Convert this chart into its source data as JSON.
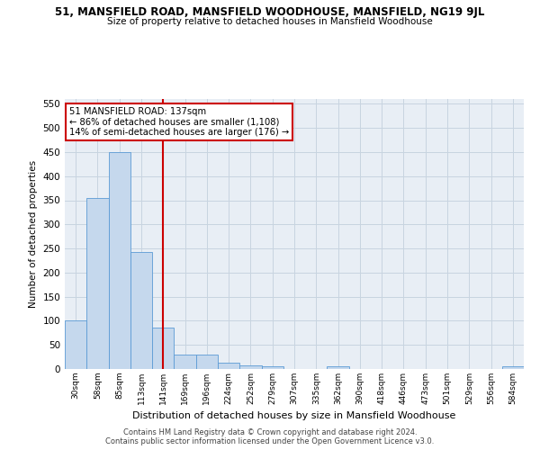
{
  "title": "51, MANSFIELD ROAD, MANSFIELD WOODHOUSE, MANSFIELD, NG19 9JL",
  "subtitle": "Size of property relative to detached houses in Mansfield Woodhouse",
  "xlabel": "Distribution of detached houses by size in Mansfield Woodhouse",
  "ylabel": "Number of detached properties",
  "footer_line1": "Contains HM Land Registry data © Crown copyright and database right 2024.",
  "footer_line2": "Contains public sector information licensed under the Open Government Licence v3.0.",
  "annotation_line1": "51 MANSFIELD ROAD: 137sqm",
  "annotation_line2": "← 86% of detached houses are smaller (1,108)",
  "annotation_line3": "14% of semi-detached houses are larger (176) →",
  "bar_color": "#c5d8ed",
  "bar_edge_color": "#5b9bd5",
  "vline_color": "#cc0000",
  "annotation_box_color": "#cc0000",
  "categories": [
    "30sqm",
    "58sqm",
    "85sqm",
    "113sqm",
    "141sqm",
    "169sqm",
    "196sqm",
    "224sqm",
    "252sqm",
    "279sqm",
    "307sqm",
    "335sqm",
    "362sqm",
    "390sqm",
    "418sqm",
    "446sqm",
    "473sqm",
    "501sqm",
    "529sqm",
    "556sqm",
    "584sqm"
  ],
  "values": [
    100,
    355,
    449,
    242,
    86,
    30,
    30,
    14,
    8,
    5,
    0,
    0,
    5,
    0,
    0,
    0,
    0,
    0,
    0,
    0,
    5
  ],
  "ylim": [
    0,
    560
  ],
  "yticks": [
    0,
    50,
    100,
    150,
    200,
    250,
    300,
    350,
    400,
    450,
    500,
    550
  ],
  "vline_x_idx": 4,
  "grid_color": "#c8d4e0",
  "bg_color": "#e8eef5"
}
